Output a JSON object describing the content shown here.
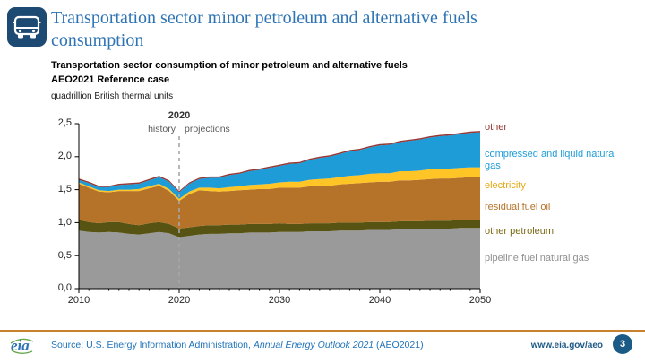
{
  "header": {
    "title": "Transportation sector minor petroleum and alternative fuels\nconsumption",
    "chart_title": "Transportation sector consumption of minor petroleum and alternative fuels",
    "case_label": "AEO2021 Reference case",
    "units_label": "quadrillion British thermal units"
  },
  "annotations": {
    "divider_year": "2020",
    "left_label": "history",
    "right_label": "projections"
  },
  "legend": [
    {
      "label": "other",
      "color": "#953735"
    },
    {
      "label": "compressed and liquid natural gas",
      "color": "#1e9cd8"
    },
    {
      "label": "electricity",
      "color": "#e5a812"
    },
    {
      "label": "residual fuel oil",
      "color": "#b5732a"
    },
    {
      "label": "other petroleum",
      "color": "#7a6a14"
    },
    {
      "label": "pipeline fuel natural gas",
      "color": "#8f8f8f"
    }
  ],
  "chart_data": {
    "type": "area",
    "title": "Transportation sector consumption of minor petroleum and alternative fuels",
    "xlabel": "",
    "ylabel": "quadrillion British thermal units",
    "ylim": [
      0,
      2.5
    ],
    "xlim": [
      2010,
      2050
    ],
    "grid": false,
    "legend_position": "right",
    "y_tick_labels": [
      "0,0",
      "0,5",
      "1,0",
      "1,5",
      "2,0",
      "2,5"
    ],
    "x_tick_labels": [
      "2010",
      "2020",
      "2030",
      "2040",
      "2050"
    ],
    "years": [
      2010,
      2011,
      2012,
      2013,
      2014,
      2015,
      2016,
      2017,
      2018,
      2019,
      2020,
      2021,
      2022,
      2023,
      2024,
      2025,
      2026,
      2027,
      2028,
      2029,
      2030,
      2031,
      2032,
      2033,
      2034,
      2035,
      2036,
      2037,
      2038,
      2039,
      2040,
      2041,
      2042,
      2043,
      2044,
      2045,
      2046,
      2047,
      2048,
      2049,
      2050
    ],
    "series": [
      {
        "name": "pipeline fuel natural gas",
        "color": "#9a9a9a",
        "values": [
          0.88,
          0.86,
          0.85,
          0.86,
          0.85,
          0.83,
          0.82,
          0.84,
          0.86,
          0.84,
          0.78,
          0.8,
          0.82,
          0.83,
          0.83,
          0.84,
          0.84,
          0.85,
          0.85,
          0.85,
          0.86,
          0.86,
          0.86,
          0.87,
          0.87,
          0.87,
          0.88,
          0.88,
          0.88,
          0.89,
          0.89,
          0.89,
          0.9,
          0.9,
          0.9,
          0.91,
          0.91,
          0.91,
          0.92,
          0.92,
          0.92
        ]
      },
      {
        "name": "other petroleum",
        "color": "#575312",
        "values": [
          0.16,
          0.15,
          0.14,
          0.15,
          0.16,
          0.15,
          0.14,
          0.15,
          0.15,
          0.14,
          0.13,
          0.13,
          0.13,
          0.13,
          0.13,
          0.13,
          0.13,
          0.13,
          0.13,
          0.13,
          0.13,
          0.12,
          0.12,
          0.12,
          0.12,
          0.12,
          0.12,
          0.12,
          0.12,
          0.12,
          0.12,
          0.12,
          0.12,
          0.12,
          0.12,
          0.12,
          0.12,
          0.12,
          0.12,
          0.12,
          0.12
        ]
      },
      {
        "name": "residual fuel oil",
        "color": "#b5732a",
        "values": [
          0.55,
          0.52,
          0.48,
          0.45,
          0.47,
          0.5,
          0.52,
          0.53,
          0.55,
          0.5,
          0.42,
          0.5,
          0.54,
          0.52,
          0.51,
          0.51,
          0.52,
          0.52,
          0.53,
          0.53,
          0.54,
          0.55,
          0.55,
          0.56,
          0.57,
          0.57,
          0.58,
          0.59,
          0.6,
          0.6,
          0.61,
          0.61,
          0.62,
          0.62,
          0.63,
          0.63,
          0.64,
          0.64,
          0.64,
          0.65,
          0.65
        ]
      },
      {
        "name": "electricity",
        "color": "#ffc425",
        "values": [
          0.02,
          0.02,
          0.02,
          0.02,
          0.02,
          0.02,
          0.03,
          0.03,
          0.03,
          0.03,
          0.03,
          0.04,
          0.04,
          0.05,
          0.05,
          0.06,
          0.06,
          0.07,
          0.07,
          0.08,
          0.08,
          0.09,
          0.09,
          0.1,
          0.1,
          0.11,
          0.11,
          0.12,
          0.12,
          0.13,
          0.13,
          0.13,
          0.14,
          0.14,
          0.14,
          0.15,
          0.15,
          0.15,
          0.15,
          0.15,
          0.15
        ]
      },
      {
        "name": "compressed and liquid natural gas",
        "color": "#1e9cd8",
        "values": [
          0.04,
          0.05,
          0.05,
          0.06,
          0.07,
          0.08,
          0.08,
          0.09,
          0.1,
          0.11,
          0.1,
          0.12,
          0.13,
          0.15,
          0.16,
          0.18,
          0.19,
          0.21,
          0.22,
          0.24,
          0.25,
          0.27,
          0.28,
          0.3,
          0.32,
          0.33,
          0.35,
          0.37,
          0.38,
          0.4,
          0.42,
          0.43,
          0.44,
          0.46,
          0.47,
          0.48,
          0.49,
          0.5,
          0.51,
          0.52,
          0.53
        ]
      },
      {
        "name": "other",
        "color": "#953735",
        "values": [
          0.02,
          0.02,
          0.02,
          0.02,
          0.02,
          0.02,
          0.02,
          0.02,
          0.02,
          0.02,
          0.02,
          0.02,
          0.02,
          0.02,
          0.02,
          0.02,
          0.02,
          0.02,
          0.02,
          0.02,
          0.02,
          0.02,
          0.02,
          0.02,
          0.02,
          0.02,
          0.02,
          0.02,
          0.02,
          0.02,
          0.02,
          0.02,
          0.02,
          0.02,
          0.02,
          0.02,
          0.02,
          0.02,
          0.02,
          0.02,
          0.02
        ]
      }
    ]
  },
  "footer": {
    "source_prefix": "Source: U.S. Energy Information Administration, ",
    "source_italic": "Annual Energy Outlook 2021",
    "source_suffix": " (AEO2021)",
    "url": "www.eia.gov/aeo",
    "page_number": "3",
    "logo_text": "eia"
  }
}
